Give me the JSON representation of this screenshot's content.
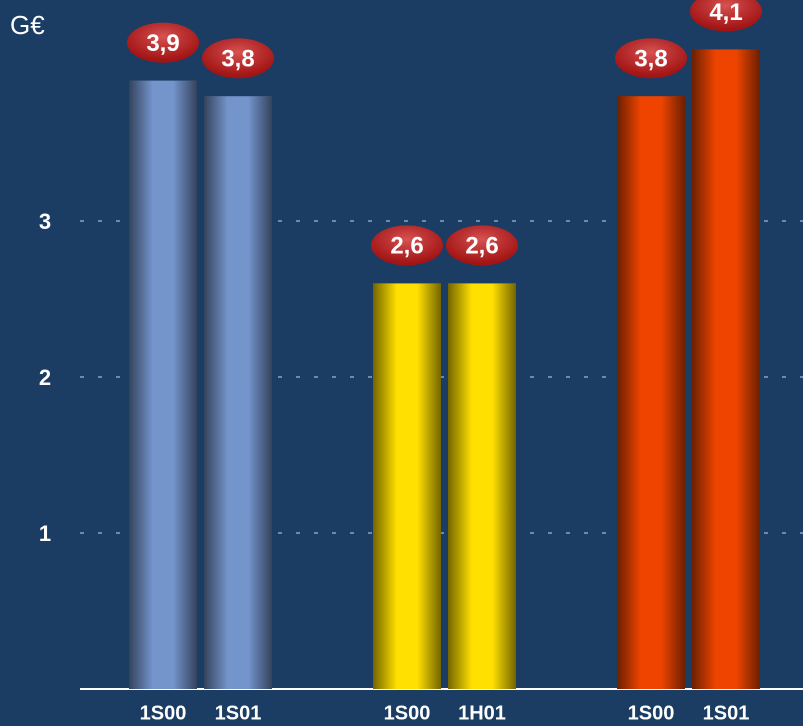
{
  "chart_data": {
    "type": "bar",
    "y_label": "G€",
    "categories": [
      "1S00",
      "1S01",
      "1S00",
      "1H01",
      "1S00",
      "1S01"
    ],
    "values": [
      3.9,
      3.8,
      2.6,
      2.6,
      3.8,
      4.1
    ],
    "value_labels": [
      "3,9",
      "3,8",
      "2,6",
      "2,6",
      "3,8",
      "4,1"
    ],
    "colors": [
      "#7494cc",
      "#7494cc",
      "#ffe000",
      "#ffe000",
      "#ee4400",
      "#ee4400"
    ],
    "label_color": "#cc1a1a",
    "ylim": [
      0,
      4.4
    ],
    "yticks": [
      1,
      2,
      3
    ],
    "grid": true
  }
}
